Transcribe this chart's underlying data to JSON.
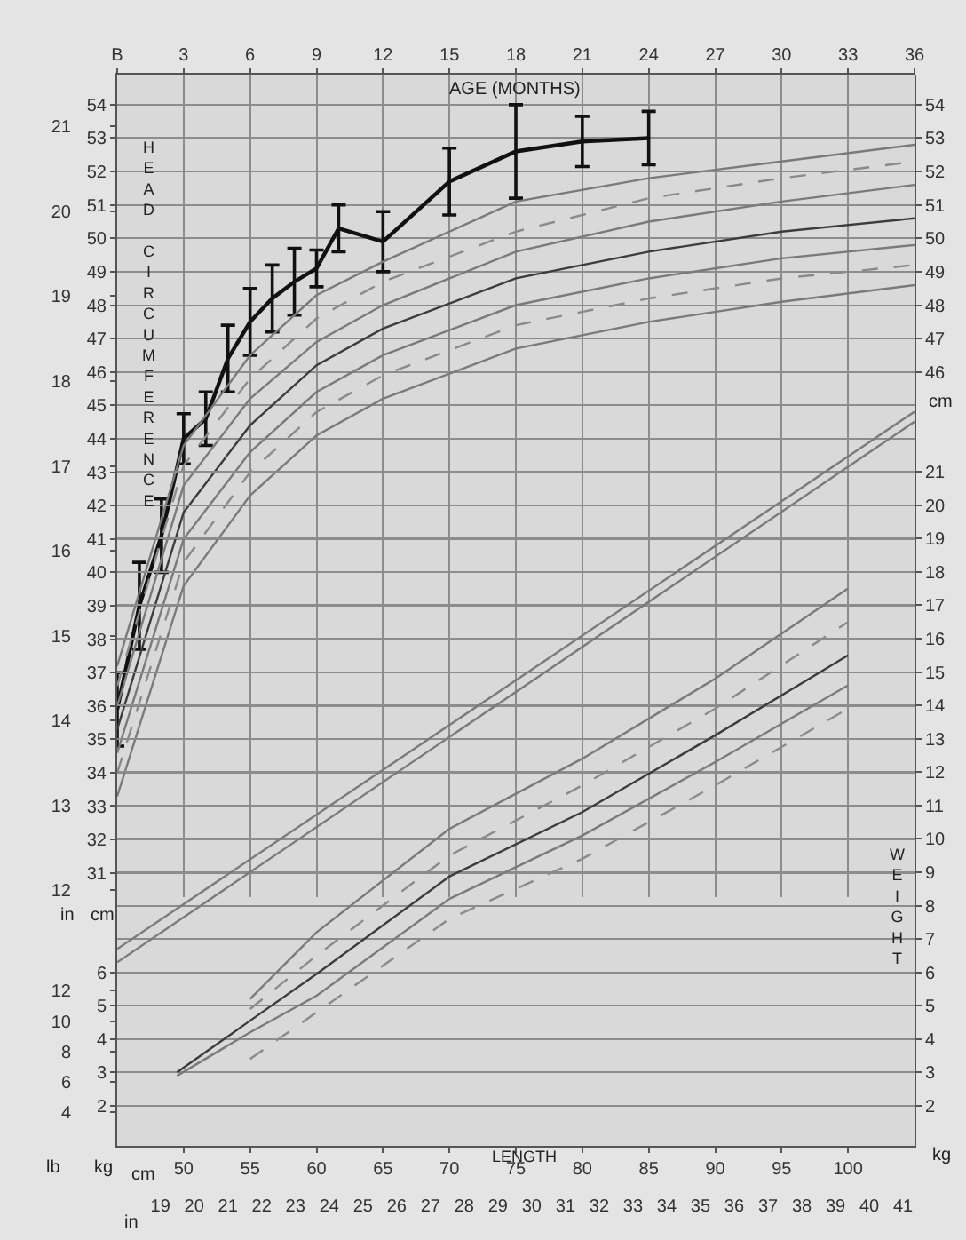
{
  "chart_data": [
    {
      "type": "line",
      "xlabel": "AGE (MONTHS)",
      "ylabel": "cm",
      "y2label": "in",
      "y3label": "cm",
      "annotations": [
        "HEAD CIRCUMFERENCE"
      ],
      "xlim": [
        0,
        36
      ],
      "xticks": [
        {
          "value": 0,
          "label": "B"
        },
        3,
        6,
        9,
        12,
        15,
        18,
        21,
        24,
        27,
        30,
        33,
        36
      ],
      "ylim": [
        30.28,
        54.9
      ],
      "yticks": [
        31,
        32,
        33,
        34,
        35,
        36,
        37,
        38,
        39,
        40,
        41,
        42,
        43,
        44,
        45,
        46,
        47,
        48,
        49,
        50,
        51,
        52,
        53,
        54
      ],
      "y2lim": [
        11.92,
        21.61
      ],
      "y2ticks": [
        12,
        13,
        14,
        15,
        16,
        17,
        18,
        19,
        20,
        21
      ],
      "y3lim": [
        30.28,
        54.9
      ],
      "y3ticks": [
        46,
        47,
        48,
        49,
        50,
        51,
        52,
        53,
        54
      ],
      "grid": true,
      "marker": "none",
      "series": [
        {
          "color": "#111111",
          "line_style": "solid",
          "x": [
            0,
            1,
            2,
            3,
            4,
            5,
            6,
            7,
            8,
            9,
            10,
            12,
            15,
            18,
            21,
            24
          ],
          "values": [
            35.9,
            39.0,
            41.1,
            44.0,
            44.6,
            46.4,
            47.5,
            48.2,
            48.7,
            49.1,
            50.3,
            49.9,
            51.7,
            52.6,
            52.9,
            53.0
          ],
          "errors": [
            1.1,
            1.3,
            1.1,
            0.75,
            0.8,
            1.0,
            1.0,
            1.0,
            1.0,
            0.55,
            0.7,
            0.9,
            1.0,
            1.4,
            0.75,
            0.8
          ]
        },
        {
          "color": "#7a7a7a",
          "line_style": "solid",
          "x": [
            0,
            3,
            6,
            9,
            12,
            18,
            24,
            30,
            36
          ],
          "values": [
            37.2,
            43.8,
            46.5,
            48.3,
            49.3,
            51.1,
            51.8,
            52.3,
            52.8
          ]
        },
        {
          "color": "#8a8a8a",
          "line_style": "dashed",
          "x": [
            0,
            3,
            6,
            9,
            12,
            18,
            24,
            30,
            36
          ],
          "values": [
            36.6,
            43.2,
            45.8,
            47.6,
            48.7,
            50.2,
            51.2,
            51.8,
            52.3
          ]
        },
        {
          "color": "#7a7a7a",
          "line_style": "solid",
          "x": [
            0,
            3,
            6,
            9,
            12,
            18,
            24,
            30,
            36
          ],
          "values": [
            36.0,
            42.6,
            45.2,
            46.9,
            48.0,
            49.6,
            50.5,
            51.1,
            51.6
          ]
        },
        {
          "color": "#3c3c3c",
          "line_style": "solid",
          "x": [
            0,
            3,
            6,
            9,
            12,
            18,
            24,
            30,
            36
          ],
          "values": [
            35.3,
            41.8,
            44.4,
            46.2,
            47.3,
            48.8,
            49.6,
            50.2,
            50.6
          ]
        },
        {
          "color": "#7a7a7a",
          "line_style": "solid",
          "x": [
            0,
            3,
            6,
            9,
            12,
            18,
            24,
            30,
            36
          ],
          "values": [
            34.6,
            41.0,
            43.6,
            45.4,
            46.5,
            48.0,
            48.8,
            49.4,
            49.8
          ]
        },
        {
          "color": "#8a8a8a",
          "line_style": "dashed",
          "x": [
            0,
            3,
            6,
            9,
            12,
            18,
            24,
            30,
            36
          ],
          "values": [
            34.0,
            40.3,
            43.0,
            44.8,
            45.9,
            47.4,
            48.2,
            48.8,
            49.2
          ]
        },
        {
          "color": "#7a7a7a",
          "line_style": "solid",
          "x": [
            0,
            3,
            6,
            9,
            12,
            18,
            24,
            30,
            36
          ],
          "values": [
            33.3,
            39.6,
            42.3,
            44.1,
            45.2,
            46.7,
            47.5,
            48.1,
            48.6
          ]
        }
      ]
    },
    {
      "type": "line",
      "xlabel": "cm",
      "x2label": "in",
      "ylabel": "kg",
      "y2label": "lb",
      "y3label": "kg",
      "annotations": [
        "WEIGHT",
        "LENGTH"
      ],
      "xlim": [
        45,
        105
      ],
      "xticks": [
        50,
        55,
        60,
        65,
        70,
        75,
        80,
        85,
        90,
        95,
        100
      ],
      "x2lim": [
        17.72,
        41.34
      ],
      "x2ticks": [
        19,
        20,
        21,
        22,
        23,
        24,
        25,
        26,
        27,
        28,
        29,
        30,
        31,
        32,
        33,
        34,
        35,
        36,
        37,
        38,
        39,
        40,
        41
      ],
      "ylim": [
        0.8,
        32.9
      ],
      "yticks": [
        2,
        3,
        4,
        5,
        6,
        7,
        8,
        9,
        10,
        11,
        12,
        13,
        14,
        15,
        16,
        17,
        18,
        19,
        20,
        21
      ],
      "y2lim": [
        1.76,
        72.5
      ],
      "y2ticks": [
        4,
        6,
        8,
        10,
        12
      ],
      "y3lim": [
        0.8,
        32.9
      ],
      "y3ticks": [
        2,
        3,
        4,
        5,
        6
      ],
      "grid": "y",
      "marker": "none",
      "series": [
        {
          "color": "#7a7a7a",
          "line_style": "solid",
          "x": [
            45,
            105
          ],
          "values": [
            6.7,
            22.8
          ]
        },
        {
          "color": "#7a7a7a",
          "line_style": "solid",
          "x": [
            45,
            105
          ],
          "values": [
            6.3,
            22.5
          ]
        },
        {
          "color": "#7a7a7a",
          "line_style": "solid",
          "x": [
            55,
            60,
            70,
            80,
            90,
            100
          ],
          "values": [
            5.2,
            7.2,
            10.3,
            12.4,
            14.8,
            17.5
          ]
        },
        {
          "color": "#8a8a8a",
          "line_style": "dashed",
          "x": [
            55,
            60,
            70,
            80,
            90,
            100
          ],
          "values": [
            4.9,
            6.5,
            9.5,
            11.6,
            13.9,
            16.5
          ]
        },
        {
          "color": "#3c3c3c",
          "line_style": "solid",
          "x": [
            49.5,
            55,
            60,
            70,
            80,
            90,
            100
          ],
          "values": [
            3.0,
            4.55,
            5.95,
            8.87,
            10.8,
            13.1,
            15.5
          ]
        },
        {
          "color": "#7a7a7a",
          "line_style": "solid",
          "x": [
            49.5,
            55,
            60,
            70,
            80,
            90,
            100
          ],
          "values": [
            2.9,
            4.2,
            5.3,
            8.2,
            10.1,
            12.3,
            14.6
          ]
        },
        {
          "color": "#8a8a8a",
          "line_style": "dashed",
          "x": [
            55,
            60,
            70,
            80,
            90,
            100
          ],
          "values": [
            3.4,
            4.8,
            7.6,
            9.4,
            11.6,
            13.9
          ]
        }
      ]
    }
  ]
}
